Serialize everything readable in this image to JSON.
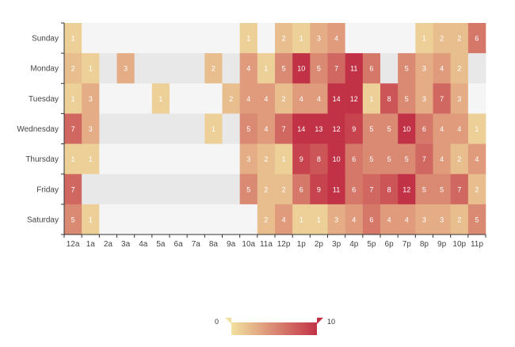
{
  "chart_data": {
    "type": "heatmap",
    "title": "",
    "xlabel": "",
    "ylabel": "",
    "x_categories": [
      "12a",
      "1a",
      "2a",
      "3a",
      "4a",
      "5a",
      "6a",
      "7a",
      "8a",
      "9a",
      "10a",
      "11a",
      "12p",
      "1p",
      "2p",
      "3p",
      "4p",
      "5p",
      "6p",
      "7p",
      "8p",
      "9p",
      "10p",
      "11p"
    ],
    "y_categories": [
      "Sunday",
      "Monday",
      "Tuesday",
      "Wednesday",
      "Thursday",
      "Friday",
      "Saturday"
    ],
    "values": [
      [
        1,
        0,
        0,
        0,
        0,
        0,
        0,
        0,
        0,
        0,
        1,
        0,
        2,
        1,
        3,
        4,
        0,
        0,
        0,
        0,
        1,
        2,
        2,
        6
      ],
      [
        2,
        1,
        0,
        3,
        0,
        0,
        0,
        0,
        2,
        0,
        4,
        1,
        5,
        10,
        5,
        7,
        11,
        6,
        0,
        5,
        3,
        4,
        2,
        0
      ],
      [
        1,
        3,
        0,
        0,
        0,
        1,
        0,
        0,
        0,
        2,
        4,
        4,
        2,
        4,
        4,
        14,
        12,
        1,
        8,
        5,
        3,
        7,
        3,
        0
      ],
      [
        7,
        3,
        0,
        0,
        0,
        0,
        0,
        0,
        1,
        0,
        5,
        4,
        7,
        14,
        13,
        12,
        9,
        5,
        5,
        10,
        6,
        4,
        4,
        1
      ],
      [
        1,
        1,
        0,
        0,
        0,
        0,
        0,
        0,
        0,
        0,
        3,
        2,
        1,
        9,
        8,
        10,
        6,
        5,
        5,
        5,
        7,
        4,
        2,
        4
      ],
      [
        7,
        0,
        0,
        0,
        0,
        0,
        0,
        0,
        0,
        0,
        5,
        2,
        2,
        6,
        9,
        11,
        6,
        7,
        8,
        12,
        5,
        5,
        7,
        2
      ],
      [
        5,
        1,
        0,
        0,
        0,
        0,
        0,
        0,
        0,
        0,
        0,
        2,
        4,
        1,
        1,
        3,
        4,
        6,
        4,
        4,
        3,
        3,
        2,
        5
      ]
    ],
    "visual_map": {
      "min": 0,
      "max": 10,
      "min_label": "0",
      "max_label": "10",
      "color_low": "#f2e1a0",
      "color_high": "#c23246"
    },
    "empty_colors": [
      "#f5f5f5",
      "#e8e8e8"
    ]
  }
}
